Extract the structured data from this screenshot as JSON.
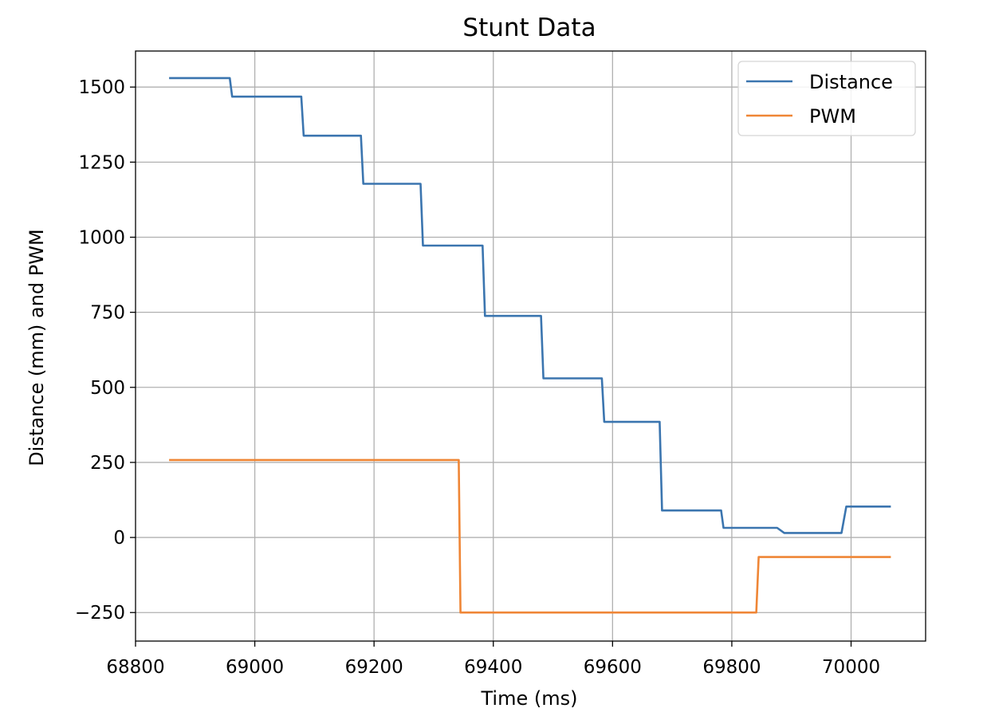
{
  "chart_data": {
    "type": "line",
    "title": "Stunt Data",
    "xlabel": "Time (ms)",
    "ylabel": "Distance (mm) and PWM",
    "xlim": [
      68800,
      70125
    ],
    "ylim": [
      -345,
      1620
    ],
    "x_ticks": [
      68800,
      69000,
      69200,
      69400,
      69600,
      69800,
      70000
    ],
    "x_tick_labels": [
      "68800",
      "69000",
      "69200",
      "69400",
      "69600",
      "69800",
      "70000"
    ],
    "y_ticks": [
      -250,
      0,
      250,
      500,
      750,
      1000,
      1250,
      1500
    ],
    "y_tick_labels": [
      "−250",
      "0",
      "250",
      "500",
      "750",
      "1000",
      "1250",
      "1500"
    ],
    "grid": true,
    "legend_position": "top-right",
    "series": [
      {
        "name": "Distance",
        "color": "#3b75af",
        "points": [
          [
            68858,
            1530
          ],
          [
            68958,
            1530
          ],
          [
            68962,
            1468
          ],
          [
            69078,
            1468
          ],
          [
            69082,
            1338
          ],
          [
            69178,
            1338
          ],
          [
            69182,
            1178
          ],
          [
            69278,
            1178
          ],
          [
            69282,
            972
          ],
          [
            69382,
            972
          ],
          [
            69386,
            738
          ],
          [
            69480,
            738
          ],
          [
            69484,
            530
          ],
          [
            69582,
            530
          ],
          [
            69586,
            385
          ],
          [
            69679,
            385
          ],
          [
            69683,
            90
          ],
          [
            69782,
            90
          ],
          [
            69786,
            32
          ],
          [
            69876,
            32
          ],
          [
            69888,
            15
          ],
          [
            69984,
            15
          ],
          [
            69992,
            103
          ],
          [
            70065,
            103
          ]
        ]
      },
      {
        "name": "PWM",
        "color": "#ef8636",
        "points": [
          [
            68858,
            258
          ],
          [
            69342,
            258
          ],
          [
            69345,
            -250
          ],
          [
            69841,
            -250
          ],
          [
            69845,
            -65
          ],
          [
            70065,
            -65
          ]
        ]
      }
    ]
  }
}
